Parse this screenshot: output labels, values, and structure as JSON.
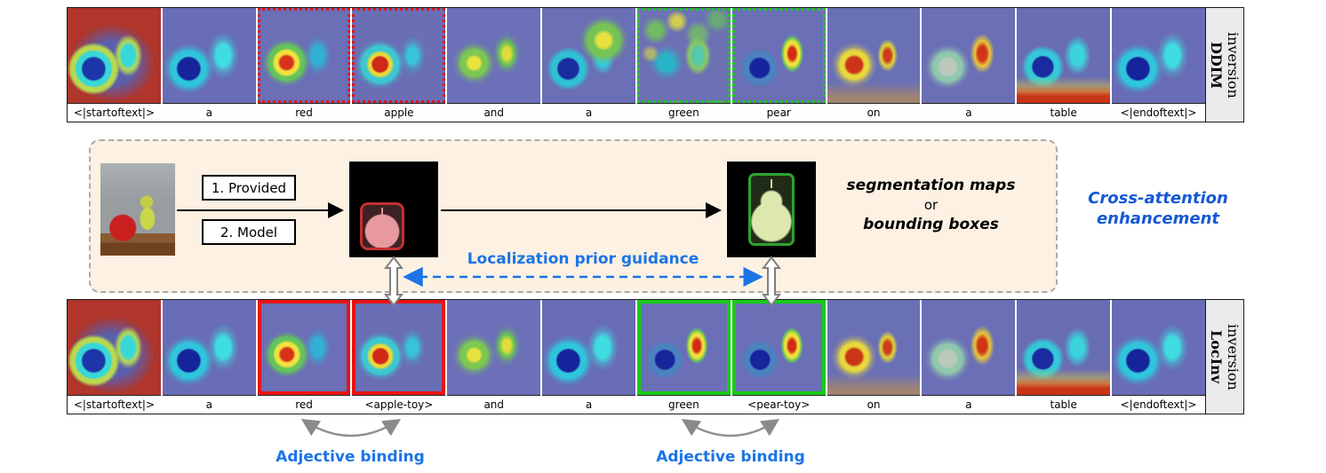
{
  "top_strip": {
    "side_label": {
      "name": "DDIM",
      "word2": "inversion"
    },
    "tokens": [
      {
        "label": "<|startoftext|>",
        "border": "none",
        "heat": "edges"
      },
      {
        "label": "a",
        "border": "none",
        "heat": "plain"
      },
      {
        "label": "red",
        "border": "red-dashed",
        "heat": "apple"
      },
      {
        "label": "apple",
        "border": "red-dashed",
        "heat": "apple2"
      },
      {
        "label": "and",
        "border": "none",
        "heat": "both"
      },
      {
        "label": "a",
        "border": "none",
        "heat": "peartop"
      },
      {
        "label": "green",
        "border": "green-dashed",
        "heat": "scatter"
      },
      {
        "label": "pear",
        "border": "green-dashed",
        "heat": "pear"
      },
      {
        "label": "on",
        "border": "none",
        "heat": "on"
      },
      {
        "label": "a",
        "border": "none",
        "heat": "pearred"
      },
      {
        "label": "table",
        "border": "none",
        "heat": "bottom"
      },
      {
        "label": "<|endoftext|>",
        "border": "none",
        "heat": "plain"
      }
    ]
  },
  "bottom_strip": {
    "side_label": {
      "name": "LocInv",
      "word2": "inversion"
    },
    "tokens": [
      {
        "label": "<|startoftext|>",
        "border": "none",
        "heat": "edges"
      },
      {
        "label": "a",
        "border": "none",
        "heat": "plain"
      },
      {
        "label": "red",
        "border": "red-solid",
        "heat": "apple"
      },
      {
        "label": "<apple-toy>",
        "border": "red-solid",
        "heat": "apple2"
      },
      {
        "label": "and",
        "border": "none",
        "heat": "both"
      },
      {
        "label": "a",
        "border": "none",
        "heat": "plain"
      },
      {
        "label": "green",
        "border": "green-solid",
        "heat": "pear"
      },
      {
        "label": "<pear-toy>",
        "border": "green-solid",
        "heat": "pear"
      },
      {
        "label": "on",
        "border": "none",
        "heat": "on"
      },
      {
        "label": "a",
        "border": "none",
        "heat": "pearred"
      },
      {
        "label": "table",
        "border": "none",
        "heat": "bottom"
      },
      {
        "label": "<|endoftext|>",
        "border": "none",
        "heat": "plain"
      }
    ]
  },
  "diagram": {
    "provided_label": "1. Provided",
    "model_label": "2. Model",
    "seg_line1": "segmentation maps",
    "seg_line2": "or",
    "seg_line3": "bounding boxes",
    "loc_guidance": "Localization prior guidance",
    "cross_attention_line1": "Cross-attention",
    "cross_attention_line2": "enhancement"
  },
  "annotations": {
    "adjective_binding_left": "Adjective binding",
    "adjective_binding_right": "Adjective binding"
  },
  "colors": {
    "accent_blue": "#1b74e8",
    "highlight_red": "#e81414",
    "highlight_green": "#16cc16",
    "box_background": "#fcf1e2"
  }
}
